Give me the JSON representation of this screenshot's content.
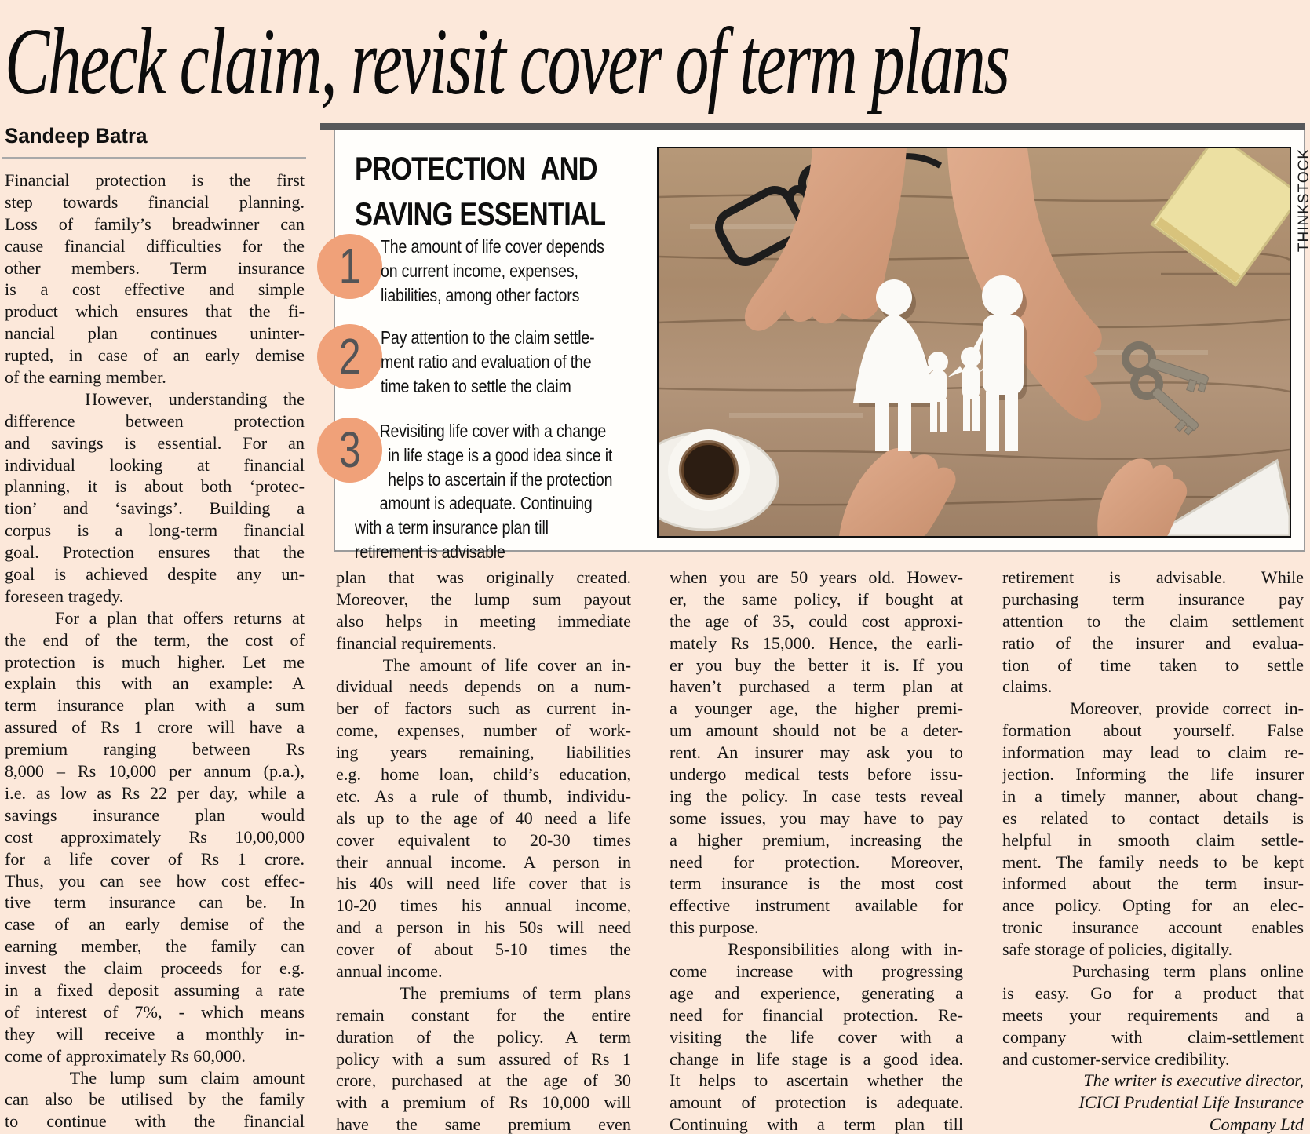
{
  "page": {
    "headline": "Check claim, revisit cover of term plans",
    "byline": "Sandeep Batra"
  },
  "colors": {
    "page_bg": "#fce8da",
    "box_bg": "#fffefb",
    "top_bar": "#57585a",
    "accent_circle": "#f0a179",
    "circle_number": "#545456",
    "body_text": "#141414"
  },
  "infobox": {
    "title_line1": "PROTECTION AND",
    "title_line2": "SAVING ESSENTIAL",
    "items": [
      {
        "number": "1",
        "lines": [
          "The amount of life cover depends",
          "on current income, expenses,",
          "liabilities, among other factors"
        ]
      },
      {
        "number": "2",
        "lines": [
          "Pay attention to the claim settle-",
          "ment ratio and evaluation of the",
          "time taken to settle the claim"
        ]
      },
      {
        "number": "3",
        "lines": [
          "      Revisiting life cover with a change",
          "        in life stage is a good idea since it",
          "        helps to ascertain if the protection",
          "      amount is adequate. Continuing",
          "with a term insurance plan till",
          "retirement is advisable"
        ]
      }
    ]
  },
  "photo": {
    "credit": "THINKSTOCK",
    "description": "hands encircling paper family cutout on wooden table with glasses, coffee cup, keys and notepad"
  },
  "article": {
    "col1": {
      "lines": [
        "Financial protection is the first",
        "step towards financial planning.",
        "Loss of family’s breadwinner can",
        "cause financial difficulties for the",
        "other members. Term insurance",
        "is a cost effective and simple",
        "product which ensures that the fi-",
        "nancial plan continues uninter-",
        "rupted, in case of an early demise",
        "of the earning member.",
        "     However, understanding the",
        "difference between protection",
        "and savings is essential. For an",
        "individual looking at financial",
        "planning, it is about both ‘protec-",
        "tion’ and ‘savings’. Building a",
        "corpus is a long-term financial",
        "goal. Protection ensures that the",
        "goal is achieved despite any un-",
        "foreseen tragedy.",
        "     For a plan that offers returns at",
        "the end of the term, the cost of",
        "protection is much higher. Let me",
        "explain this with an example: A",
        "term insurance plan with a sum",
        "assured of Rs 1 crore will have a",
        "premium ranging between Rs",
        "8,000 – Rs 10,000 per annum (p.a.),",
        "i.e. as low as Rs 22 per day, while a",
        "savings insurance plan would",
        "cost approximately Rs 10,00,000",
        "for a life cover of Rs 1 crore.",
        "Thus, you can see how cost effec-",
        "tive term insurance can be. In",
        "case of an early demise of the",
        "earning member, the family can",
        "invest the claim proceeds for e.g.",
        "in a fixed deposit assuming a rate",
        "of interest of 7%, - which means",
        "they will receive a monthly in-",
        "come of approximately Rs 60,000.",
        "     The lump sum claim amount",
        "can also be utilised by the family",
        "to continue with the financial"
      ],
      "no_justify": [
        9,
        19,
        40
      ]
    },
    "col2": {
      "lines": [
        "plan that was originally created.",
        "Moreover, the lump sum payout",
        "also helps in meeting immediate",
        "financial requirements.",
        "     The amount of life cover an in-",
        "dividual needs depends on a num-",
        "ber of factors such as current in-",
        "come, expenses, number of work-",
        "ing years remaining, liabilities",
        "e.g. home loan, child’s education,",
        "etc. As a rule of thumb, individu-",
        "als up to the age of 40 need a life",
        "cover equivalent to 20-30 times",
        "their annual income. A person in",
        "his 40s will need life cover that is",
        "10-20 times his annual income,",
        "and a person in his 50s will need",
        "cover of about 5-10 times the",
        "annual income.",
        "     The premiums of term plans",
        "remain constant for the entire",
        "duration of the policy. A term",
        "policy with a sum assured of Rs 1",
        "crore, purchased at the age of 30",
        "with a premium of Rs 10,000 will",
        "have the same premium even"
      ],
      "no_justify": [
        3,
        18
      ]
    },
    "col3": {
      "lines": [
        "when you are 50 years old. Howev-",
        "er, the same policy, if bought at",
        "the age of 35, could cost approxi-",
        "mately Rs 15,000. Hence, the earli-",
        "er you buy the better it is. If you",
        "haven’t purchased a term plan at",
        "a younger age, the higher premi-",
        "um amount should not be a deter-",
        "rent. An insurer may ask you to",
        "undergo medical tests before issu-",
        "ing the policy. In case tests reveal",
        "some issues, you may have to pay",
        "a higher premium, increasing the",
        "need for protection. Moreover,",
        "term insurance is the most cost",
        "effective instrument available for",
        "this purpose.",
        "     Responsibilities along with in-",
        "come increase with progressing",
        "age and experience, generating a",
        "need for financial protection. Re-",
        "visiting the life cover with a",
        "change in life stage is a good idea.",
        "It helps to ascertain whether the",
        "amount of protection is adequate.",
        "Continuing with a term plan till"
      ],
      "no_justify": [
        16
      ]
    },
    "col4": {
      "lines": [
        "retirement is advisable. While",
        "purchasing term insurance pay",
        "attention to the claim settlement",
        "ratio of the insurer and evalua-",
        "tion of time taken to settle",
        "claims.",
        "     Moreover, provide correct in-",
        "formation about yourself. False",
        "information may lead to claim re-",
        "jection. Informing the life insurer",
        "in a timely manner, about chang-",
        "es related to contact details is",
        "helpful in smooth claim settle-",
        "ment. The family needs to be kept",
        "informed about the term insur-",
        "ance policy. Opting for an elec-",
        "tronic insurance account enables",
        "safe storage of policies, digitally.",
        "     Purchasing term plans online",
        "is easy. Go for a product that",
        "meets your requirements and a",
        "company with claim-settlement",
        "and customer-service credibility.",
        "The writer is executive director,",
        "ICICI Prudential Life Insurance",
        "Company Ltd"
      ],
      "no_justify": [
        5,
        17,
        22
      ],
      "right_italic": [
        23,
        24,
        25
      ]
    }
  }
}
